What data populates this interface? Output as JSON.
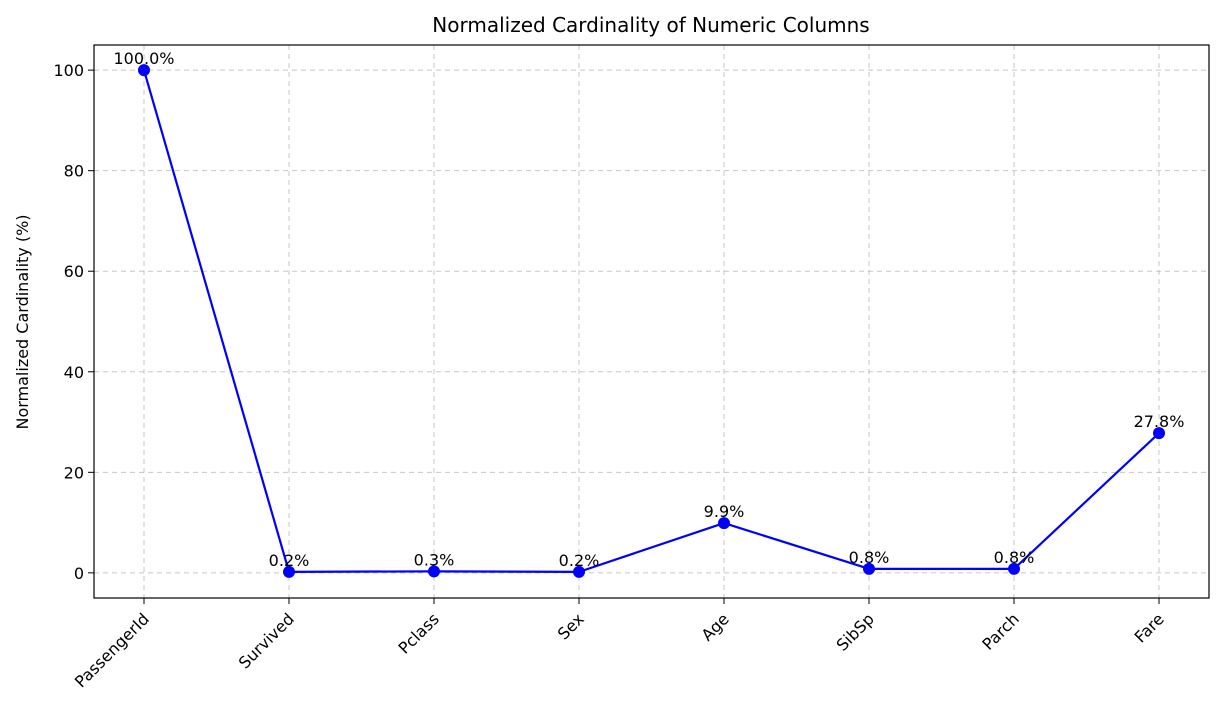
{
  "chart_data": {
    "type": "line",
    "title": "Normalized Cardinality of Numeric Columns",
    "xlabel": "",
    "ylabel": "Normalized Cardinality (%)",
    "categories": [
      "PassengerId",
      "Survived",
      "Pclass",
      "Sex",
      "Age",
      "SibSp",
      "Parch",
      "Fare"
    ],
    "values": [
      100.0,
      0.2,
      0.3,
      0.2,
      9.9,
      0.8,
      0.8,
      27.8
    ],
    "data_labels": [
      "100.0%",
      "0.2%",
      "0.3%",
      "0.2%",
      "9.9%",
      "0.8%",
      "0.8%",
      "27.8%"
    ],
    "ylim": [
      -5,
      105
    ],
    "yticks": [
      0,
      20,
      40,
      60,
      80,
      100
    ],
    "grid": true,
    "legend": "none",
    "line_color": "#0000ff",
    "marker_color": "#0000ff"
  }
}
